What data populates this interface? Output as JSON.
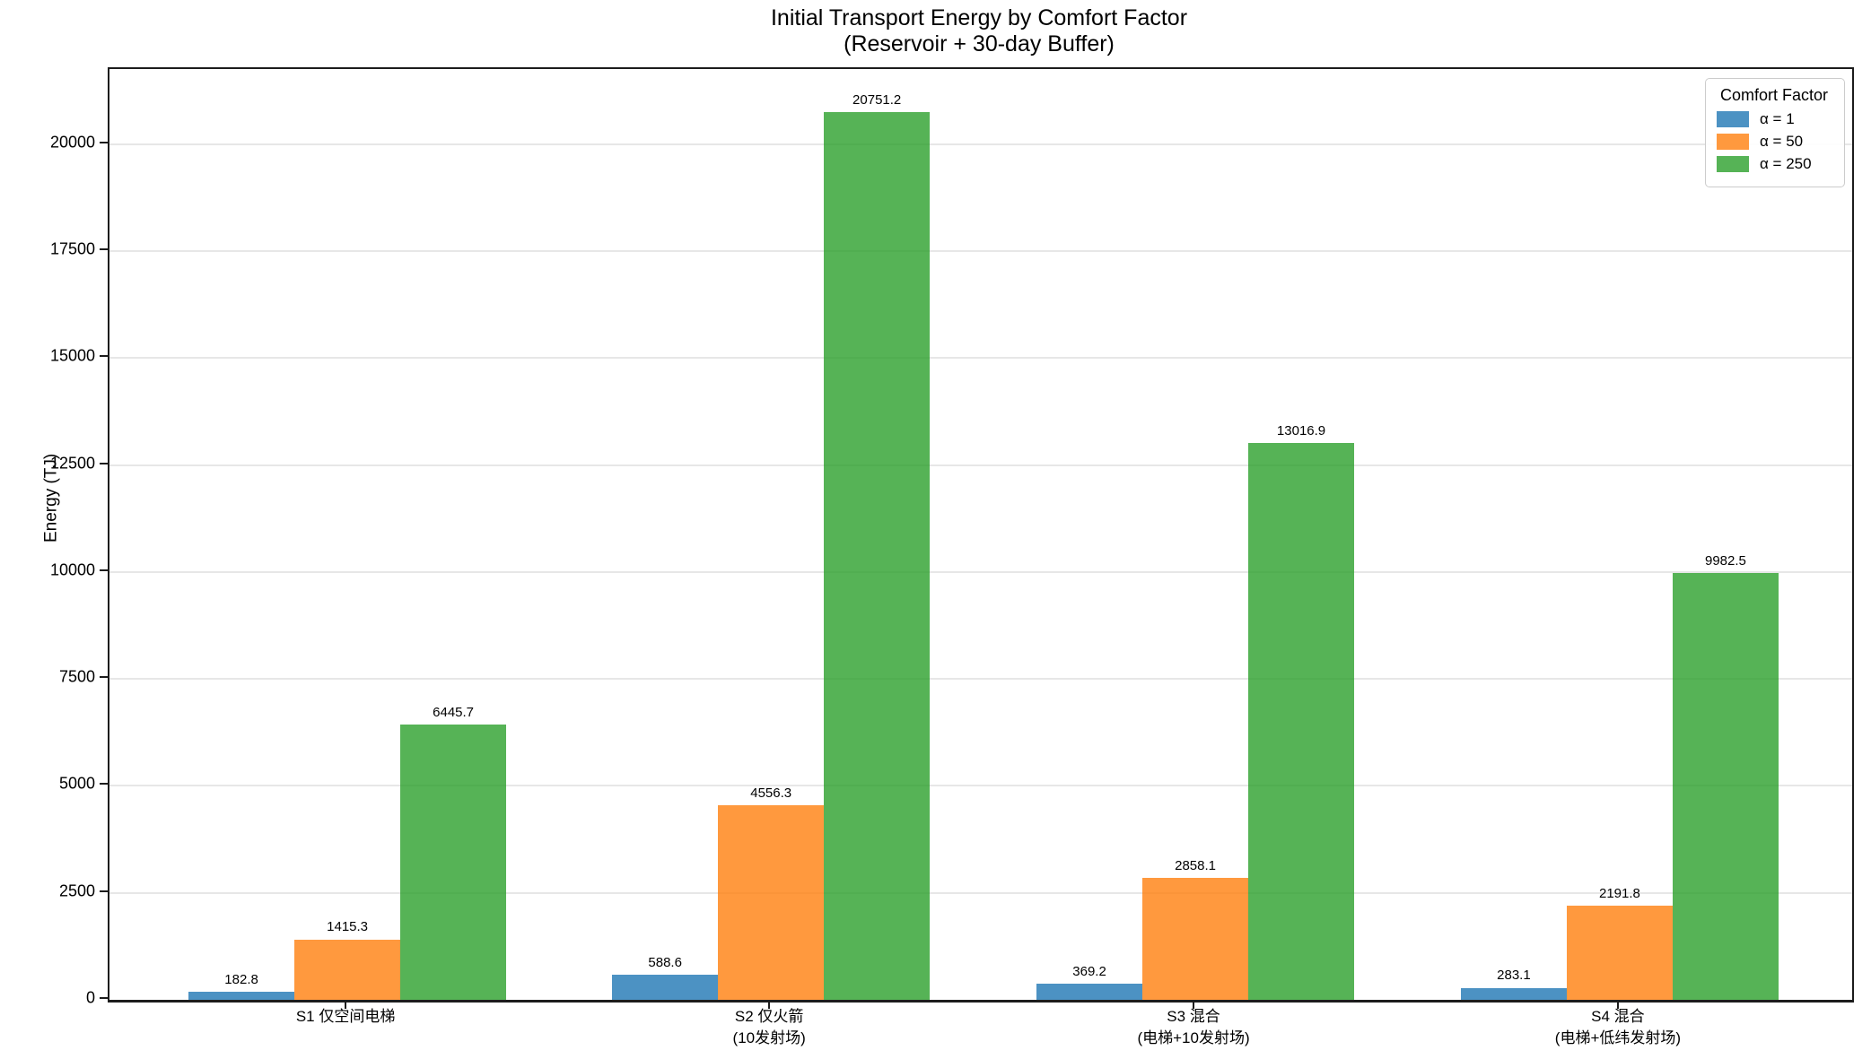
{
  "title": {
    "line1": "Initial Transport Energy by Comfort Factor",
    "line2": "(Reservoir + 30-day Buffer)"
  },
  "ylabel": "Energy (TJ)",
  "legend": {
    "title": "Comfort Factor"
  },
  "chart_data": {
    "type": "bar",
    "title": "Initial Transport Energy by Comfort Factor (Reservoir + 30-day Buffer)",
    "xlabel": "",
    "ylabel": "Energy (TJ)",
    "ylim": [
      0,
      21760
    ],
    "yticks": [
      0,
      2500,
      5000,
      7500,
      10000,
      12500,
      15000,
      17500,
      20000
    ],
    "grid": true,
    "legend_position": "upper right",
    "legend_title": "Comfort Factor",
    "bar_alpha": 0.8,
    "categories": [
      "S1 仅空间电梯",
      "S2 仅火箭\n(10发射场)",
      "S3 混合\n(电梯+10发射场)",
      "S4 混合\n(电梯+低纬发射场)"
    ],
    "series": [
      {
        "name": "α = 1",
        "color": "#1f77b4",
        "values": [
          182.8,
          588.6,
          369.2,
          283.1
        ]
      },
      {
        "name": "α = 50",
        "color": "#ff7f0e",
        "values": [
          1415.3,
          4556.3,
          2858.1,
          2191.8
        ]
      },
      {
        "name": "α = 250",
        "color": "#2ca02c",
        "values": [
          6445.7,
          20751.2,
          13016.9,
          9982.5
        ]
      }
    ]
  }
}
